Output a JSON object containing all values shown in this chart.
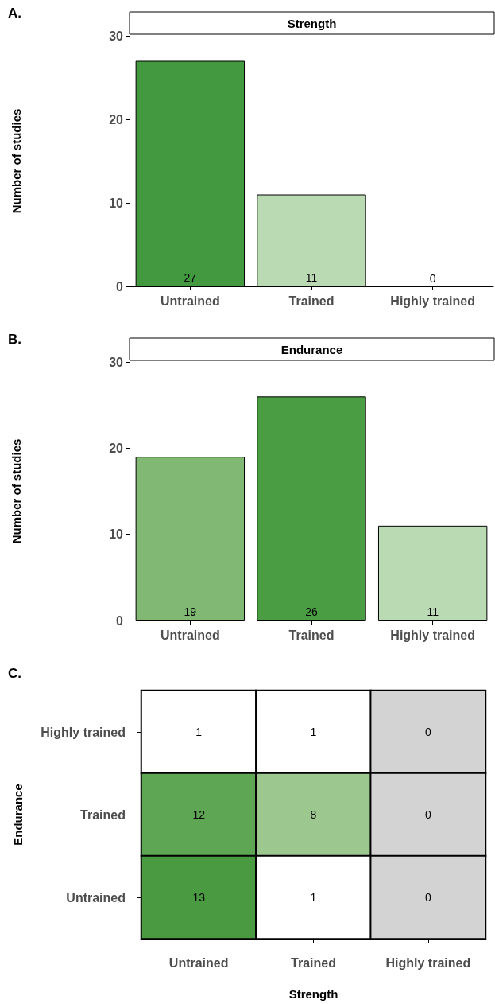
{
  "chart_data": [
    {
      "type": "bar",
      "title": "Strength",
      "annotations": [
        "A."
      ],
      "ylabel": "Number of studies",
      "categories": [
        "Untrained",
        "Trained",
        "Highly trained"
      ],
      "values": [
        27,
        11,
        0
      ],
      "colors": [
        "#43993f",
        "#badab4",
        "#badab4"
      ],
      "ylim": [
        0,
        30
      ],
      "yticks": [
        0,
        10,
        20,
        30
      ],
      "data_labels": true
    },
    {
      "type": "bar",
      "title": "Endurance",
      "annotations": [
        "B."
      ],
      "ylabel": "Number of studies",
      "categories": [
        "Untrained",
        "Trained",
        "Highly trained"
      ],
      "values": [
        19,
        26,
        11
      ],
      "colors": [
        "#80b874",
        "#4b9d44",
        "#badab4"
      ],
      "ylim": [
        0,
        30
      ],
      "yticks": [
        0,
        10,
        20,
        30
      ],
      "data_labels": true
    },
    {
      "type": "heatmap",
      "annotations": [
        "C."
      ],
      "xlabel": "Strength",
      "ylabel": "Endurance",
      "categories": [
        "Untrained",
        "Trained",
        "Highly trained"
      ],
      "y_categories": [
        "Highly trained",
        "Trained",
        "Untrained"
      ],
      "cells": [
        [
          1,
          1,
          0
        ],
        [
          12,
          8,
          0
        ],
        [
          13,
          1,
          0
        ]
      ],
      "colors": [
        [
          "#ffffff",
          "#ffffff",
          "#d3d3d3"
        ],
        [
          "#5ea554",
          "#9cc88f",
          "#d3d3d3"
        ],
        [
          "#4a9a42",
          "#ffffff",
          "#d3d3d3"
        ]
      ],
      "data_labels": true
    }
  ]
}
